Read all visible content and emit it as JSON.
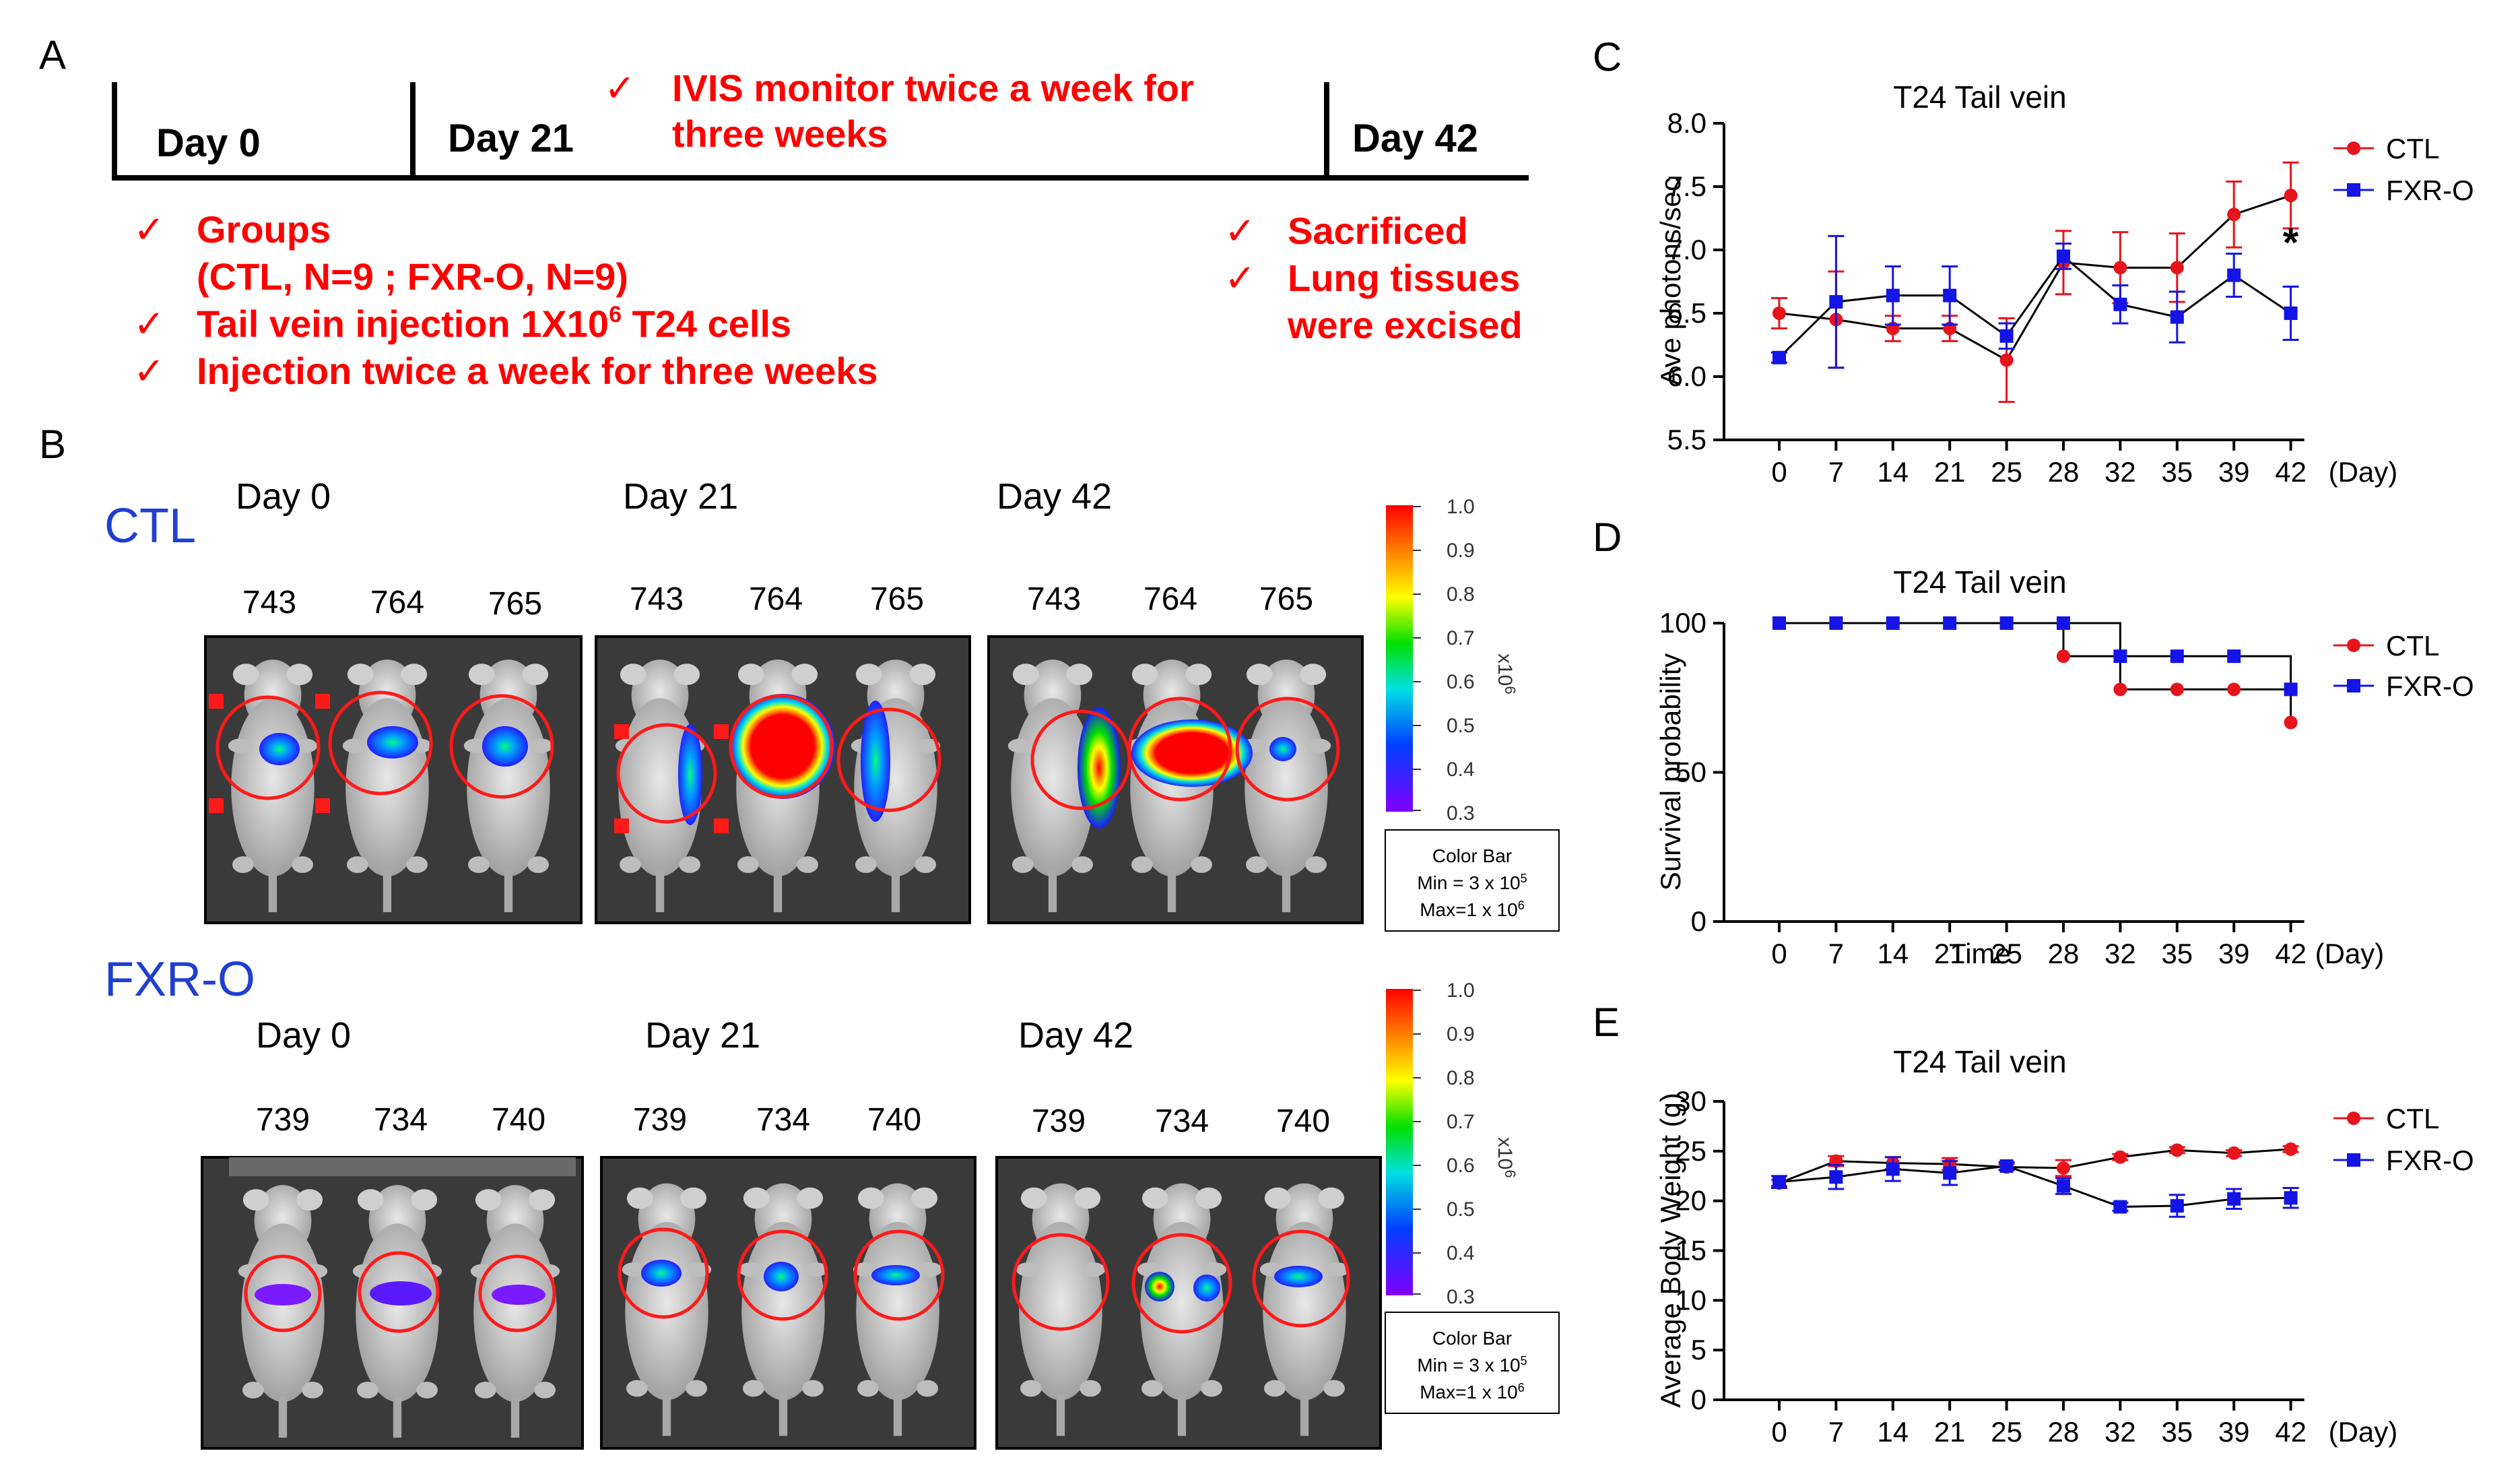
{
  "panel_labels": {
    "a": "A",
    "b": "B",
    "c": "C",
    "d": "D",
    "e": "E"
  },
  "timeline": {
    "day0": "Day 0",
    "day21": "Day 21",
    "day42": "Day 42",
    "ivis_line1": "IVIS monitor twice a week for",
    "ivis_line2": "three weeks",
    "groups_line1": "Groups",
    "groups_line2": "(CTL, N=9 ; FXR-O, N=9)",
    "tail_vein_pre": "Tail vein injection 1X10",
    "tail_vein_sup": "6",
    "tail_vein_post": " T24 cells",
    "injection": "Injection twice a week for three weeks",
    "sacrificed": "Sacrificed",
    "lung_line1": "Lung tissues",
    "lung_line2": "were excised",
    "check": "✓"
  },
  "imaging": {
    "groups": [
      {
        "name": "CTL",
        "days": [
          {
            "label": "Day 0",
            "mice": [
              "743",
              "764",
              "765"
            ]
          },
          {
            "label": "Day 21",
            "mice": [
              "743",
              "764",
              "765"
            ]
          },
          {
            "label": "Day 42",
            "mice": [
              "743",
              "764",
              "765"
            ]
          }
        ]
      },
      {
        "name": "FXR-O",
        "days": [
          {
            "label": "Day 0",
            "mice": [
              "739",
              "734",
              "740"
            ]
          },
          {
            "label": "Day 21",
            "mice": [
              "739",
              "734",
              "740"
            ]
          },
          {
            "label": "Day 42",
            "mice": [
              "739",
              "734",
              "740"
            ]
          }
        ]
      }
    ],
    "colorbar": {
      "ticks": [
        "1.0",
        "0.9",
        "0.8",
        "0.7",
        "0.6",
        "0.5",
        "0.4",
        "0.3"
      ],
      "unit_base": "x10",
      "unit_exp": "6",
      "box_title": "Color Bar",
      "min_pre": "Min = 3 x 10",
      "min_exp": "5",
      "max_pre": "Max=1 x 10",
      "max_exp": "6"
    }
  },
  "colors": {
    "ctl": "#e8141b",
    "fxr": "#1414e6",
    "red_text": "#ff0000",
    "group_label": "#1f3fd0"
  },
  "chart_data": [
    {
      "id": "C",
      "type": "line",
      "title": "T24 Tail vein",
      "xlabel": "(Day)",
      "ylabel": "Ave photons/sec",
      "categories": [
        "0",
        "7",
        "14",
        "21",
        "25",
        "28",
        "32",
        "35",
        "39",
        "42"
      ],
      "yticks": [
        "5.5",
        "6.0",
        "6.5",
        "7.0",
        "7.5",
        "8.0"
      ],
      "ylim": [
        5.5,
        8.0
      ],
      "series": [
        {
          "name": "CTL",
          "marker": "circle",
          "values": [
            6.5,
            6.45,
            6.38,
            6.38,
            6.13,
            6.9,
            6.86,
            6.86,
            7.28,
            7.43
          ],
          "errors": [
            0.12,
            0.38,
            0.1,
            0.1,
            0.33,
            0.25,
            0.28,
            0.27,
            0.26,
            0.26
          ]
        },
        {
          "name": "FXR-O",
          "marker": "square",
          "values": [
            6.15,
            6.59,
            6.64,
            6.64,
            6.32,
            6.95,
            6.57,
            6.47,
            6.8,
            6.5
          ],
          "errors": [
            0.04,
            0.52,
            0.23,
            0.23,
            0.1,
            0.1,
            0.15,
            0.2,
            0.17,
            0.21
          ]
        }
      ],
      "annotation": "*"
    },
    {
      "id": "D",
      "type": "line",
      "step": true,
      "title": "T24 Tail vein",
      "xlabel": "Time",
      "xunit": "(Day)",
      "ylabel": "Survival probability",
      "categories": [
        "0",
        "7",
        "14",
        "21",
        "25",
        "28",
        "32",
        "35",
        "39",
        "42"
      ],
      "yticks": [
        "0",
        "50",
        "100"
      ],
      "ylim": [
        0,
        100
      ],
      "series": [
        {
          "name": "CTL",
          "marker": "circle",
          "values": [
            100,
            100,
            100,
            100,
            100,
            88.9,
            77.8,
            77.8,
            77.8,
            66.7
          ]
        },
        {
          "name": "FXR-O",
          "marker": "square",
          "values": [
            100,
            100,
            100,
            100,
            100,
            100,
            88.9,
            88.9,
            88.9,
            77.8
          ]
        }
      ]
    },
    {
      "id": "E",
      "type": "line",
      "title": "T24 Tail vein",
      "xlabel": "(Day)",
      "ylabel": "Average Body Weight (g)",
      "categories": [
        "0",
        "7",
        "14",
        "21",
        "25",
        "28",
        "32",
        "35",
        "39",
        "42"
      ],
      "yticks": [
        "0",
        "5",
        "10",
        "15",
        "20",
        "25",
        "30"
      ],
      "ylim": [
        0,
        30
      ],
      "series": [
        {
          "name": "CTL",
          "marker": "circle",
          "values": [
            21.8,
            24.0,
            23.8,
            23.7,
            23.4,
            23.3,
            24.4,
            25.1,
            24.8,
            25.2
          ],
          "errors": [
            0.3,
            0.5,
            0.6,
            0.6,
            0.3,
            0.8,
            0.3,
            0.3,
            0.3,
            0.3
          ]
        },
        {
          "name": "FXR-O",
          "marker": "square",
          "values": [
            21.9,
            22.4,
            23.2,
            22.8,
            23.5,
            21.5,
            19.4,
            19.5,
            20.2,
            20.3
          ],
          "errors": [
            0.6,
            1.2,
            1.2,
            1.2,
            0.4,
            0.8,
            0.4,
            1.1,
            1.0,
            1.0
          ]
        }
      ]
    }
  ]
}
